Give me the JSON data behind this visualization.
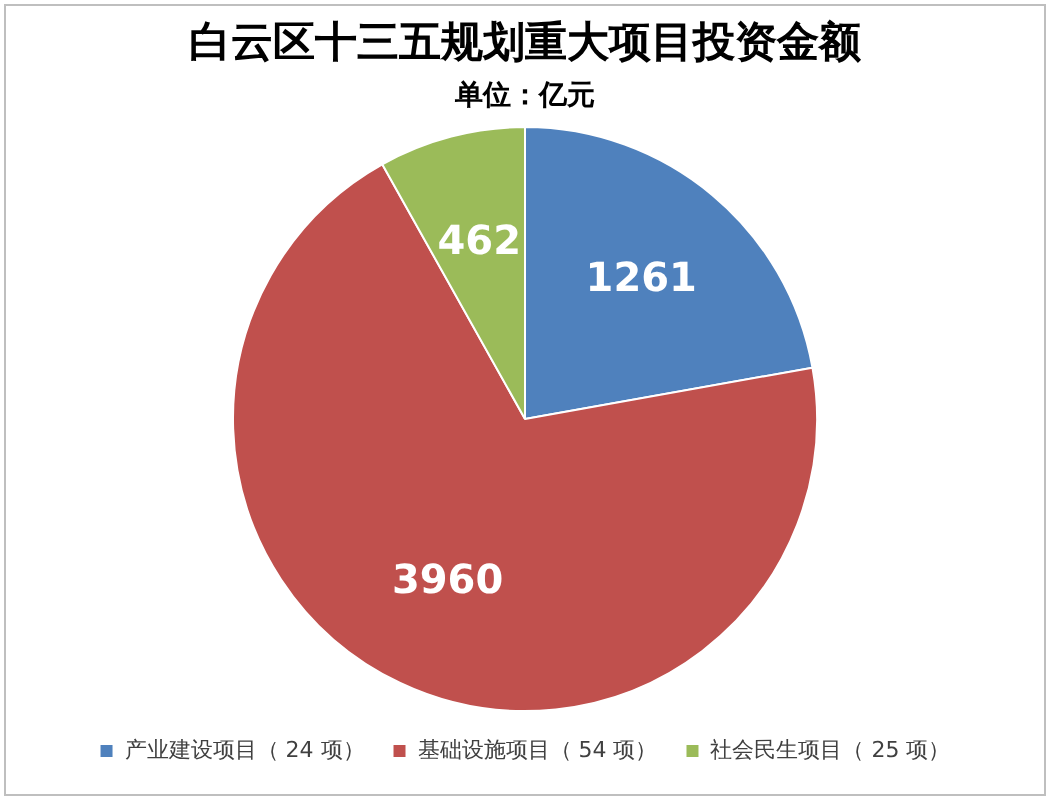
{
  "chart_data": {
    "type": "pie",
    "title": "白云区十三五规划重大项目投资金额",
    "subtitle": "单位：亿元",
    "categories": [
      "产业建设项目（ 24 项）",
      "基础设施项目（ 54 项）",
      "社会民生项目（ 25 项）"
    ],
    "values": [
      1261,
      3960,
      462
    ],
    "colors": [
      "#4f81bd",
      "#c0504d",
      "#9bbb59"
    ],
    "data_labels": true,
    "legend": "bottom"
  }
}
